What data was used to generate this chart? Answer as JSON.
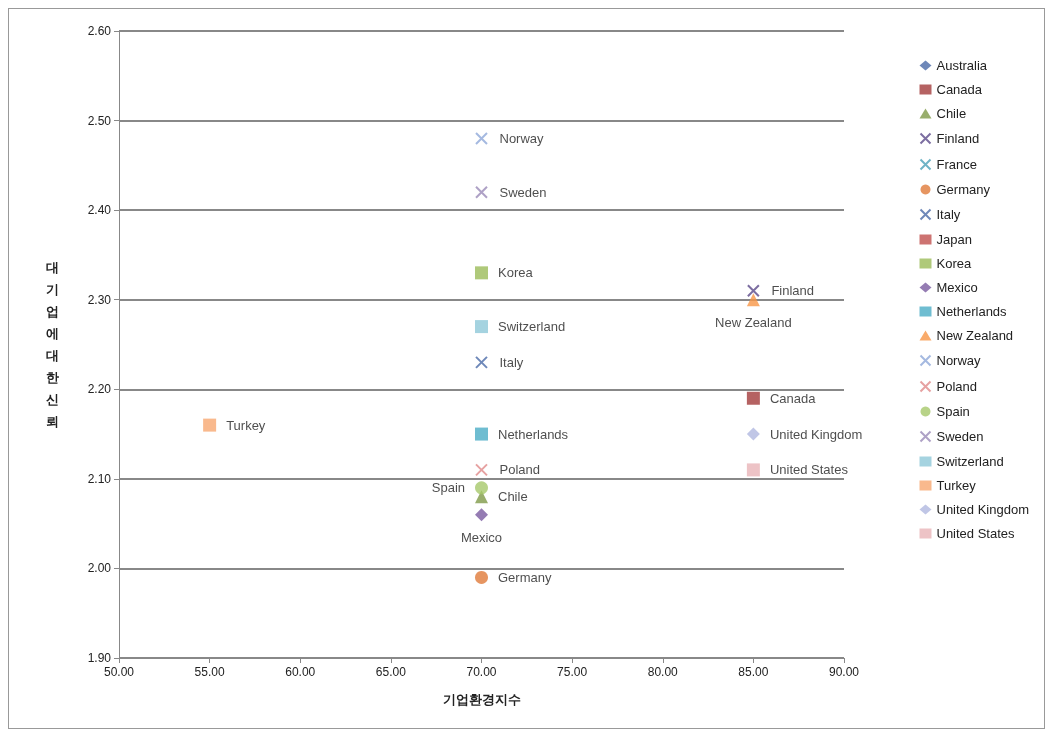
{
  "chart_data": {
    "type": "scatter",
    "xlabel": "기업환경지수",
    "ylabel": "대기업에대한신뢰",
    "xlim": [
      50,
      90
    ],
    "xticks": [
      {
        "value": 50,
        "label": "50.00"
      },
      {
        "value": 55,
        "label": "55.00"
      },
      {
        "value": 60,
        "label": "60.00"
      },
      {
        "value": 65,
        "label": "65.00"
      },
      {
        "value": 70,
        "label": "70.00"
      },
      {
        "value": 75,
        "label": "75.00"
      },
      {
        "value": 80,
        "label": "80.00"
      },
      {
        "value": 85,
        "label": "85.00"
      },
      {
        "value": 90,
        "label": "90.00"
      }
    ],
    "ylim": [
      1.9,
      2.6
    ],
    "yticks": [
      {
        "value": 1.9,
        "label": "1.90"
      },
      {
        "value": 2.0,
        "label": "2.00"
      },
      {
        "value": 2.1,
        "label": "2.10"
      },
      {
        "value": 2.2,
        "label": "2.20"
      },
      {
        "value": 2.3,
        "label": "2.30"
      },
      {
        "value": 2.4,
        "label": "2.40"
      },
      {
        "value": 2.5,
        "label": "2.50"
      },
      {
        "value": 2.6,
        "label": "2.60"
      }
    ],
    "grid": "y",
    "legend": "right",
    "series": [
      {
        "name": "Australia",
        "color": "#4a6aa8",
        "marker": "diamond",
        "x": [
          null
        ],
        "values": [
          null
        ]
      },
      {
        "name": "Canada",
        "color": "#a23b3b",
        "marker": "square",
        "x": [
          85
        ],
        "values": [
          2.19
        ]
      },
      {
        "name": "Chile",
        "color": "#7f9a48",
        "marker": "triangle",
        "x": [
          70
        ],
        "values": [
          2.08
        ]
      },
      {
        "name": "Finland",
        "color": "#5b4a8a",
        "marker": "cross",
        "x": [
          85
        ],
        "values": [
          2.31
        ]
      },
      {
        "name": "France",
        "color": "#4aa0b8",
        "marker": "cross",
        "x": [
          null
        ],
        "values": [
          null
        ]
      },
      {
        "name": "Germany",
        "color": "#e07b39",
        "marker": "circle",
        "x": [
          70
        ],
        "values": [
          1.99
        ]
      },
      {
        "name": "Italy",
        "color": "#4a6aa8",
        "marker": "cross",
        "x": [
          70
        ],
        "values": [
          2.23
        ]
      },
      {
        "name": "Japan",
        "color": "#c0504d",
        "marker": "square",
        "x": [
          null
        ],
        "values": [
          null
        ]
      },
      {
        "name": "Korea",
        "color": "#9bbb59",
        "marker": "square",
        "x": [
          70
        ],
        "values": [
          2.33
        ]
      },
      {
        "name": "Mexico",
        "color": "#7a5ba0",
        "marker": "diamond",
        "x": [
          70
        ],
        "values": [
          2.06
        ]
      },
      {
        "name": "Netherlands",
        "color": "#4bacc6",
        "marker": "square",
        "x": [
          70
        ],
        "values": [
          2.15
        ]
      },
      {
        "name": "New Zealand",
        "color": "#f79646",
        "marker": "triangle",
        "x": [
          85
        ],
        "values": [
          2.3
        ]
      },
      {
        "name": "Norway",
        "color": "#8ea8d8",
        "marker": "cross",
        "x": [
          70
        ],
        "values": [
          2.48
        ]
      },
      {
        "name": "Poland",
        "color": "#e08a8a",
        "marker": "cross",
        "x": [
          70
        ],
        "values": [
          2.11
        ]
      },
      {
        "name": "Spain",
        "color": "#a6c86a",
        "marker": "circle",
        "x": [
          70
        ],
        "values": [
          2.09
        ]
      },
      {
        "name": "Sweden",
        "color": "#9a8ab8",
        "marker": "cross",
        "x": [
          70
        ],
        "values": [
          2.42
        ]
      },
      {
        "name": "Switzerland",
        "color": "#8fc8d8",
        "marker": "square",
        "x": [
          70
        ],
        "values": [
          2.27
        ]
      },
      {
        "name": "Turkey",
        "color": "#f7a870",
        "marker": "square",
        "x": [
          55
        ],
        "values": [
          2.16
        ]
      },
      {
        "name": "United Kingdom",
        "color": "#b0b8e0",
        "marker": "diamond",
        "x": [
          85
        ],
        "values": [
          2.15
        ]
      },
      {
        "name": "United States",
        "color": "#e8b4b8",
        "marker": "square",
        "x": [
          85
        ],
        "values": [
          2.11
        ]
      }
    ]
  }
}
